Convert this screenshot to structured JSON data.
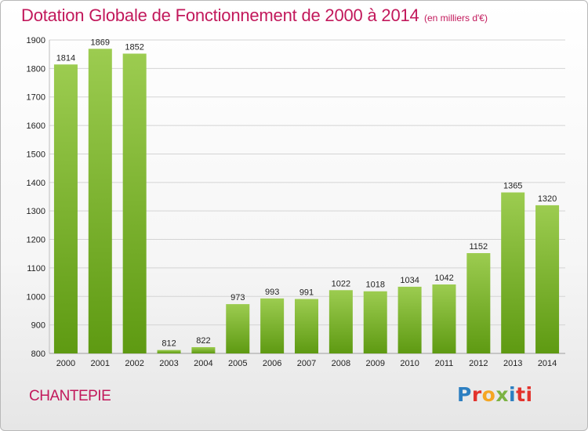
{
  "header": {
    "title": "Dotation Globale de Fonctionnement de 2000 à 2014",
    "unit": "(en milliers d'€)"
  },
  "footer": {
    "city": "CHANTEPIE",
    "logo": [
      "P",
      "r",
      "o",
      "x",
      "i",
      "ti"
    ]
  },
  "colors": {
    "bar_top": "#9ccc50",
    "bar_bottom": "#5e9a12",
    "title": "#c2185b"
  },
  "chart_data": {
    "type": "bar",
    "title": "Dotation Globale de Fonctionnement de 2000 à 2014",
    "subtitle": "(en milliers d'€)",
    "xlabel": "",
    "ylabel": "",
    "categories": [
      "2000",
      "2001",
      "2002",
      "2003",
      "2004",
      "2005",
      "2006",
      "2007",
      "2008",
      "2009",
      "2010",
      "2011",
      "2012",
      "2013",
      "2014"
    ],
    "values": [
      1814,
      1869,
      1852,
      812,
      822,
      973,
      993,
      991,
      1022,
      1018,
      1034,
      1042,
      1152,
      1365,
      1320
    ],
    "ylim": [
      800,
      1900
    ],
    "yticks": [
      800,
      900,
      1000,
      1100,
      1200,
      1300,
      1400,
      1500,
      1600,
      1700,
      1800,
      1900
    ],
    "grid": true,
    "legend": "none"
  }
}
